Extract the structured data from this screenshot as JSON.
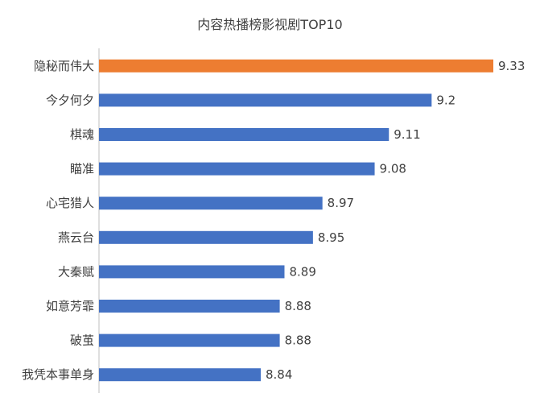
{
  "chart_data": {
    "type": "bar",
    "orientation": "horizontal",
    "title": "内容热播榜影视剧TOP10",
    "xlabel": "",
    "ylabel": "",
    "xlim": [
      0,
      10
    ],
    "grid": false,
    "legend": "none",
    "categories": [
      "隐秘而伟大",
      "今夕何夕",
      "棋魂",
      "瞄准",
      "心宅猎人",
      "燕云台",
      "大秦赋",
      "如意芳霏",
      "破茧",
      "我凭本事单身"
    ],
    "values": [
      9.33,
      9.2,
      9.11,
      9.08,
      8.97,
      8.95,
      8.89,
      8.88,
      8.88,
      8.84
    ],
    "value_labels": [
      "9.33",
      "9.2",
      "9.11",
      "9.08",
      "8.97",
      "8.95",
      "8.89",
      "8.88",
      "8.88",
      "8.84"
    ],
    "colors": {
      "highlight": "#ED7D31",
      "default": "#4472C4",
      "axis": "#BFBFBF"
    },
    "highlight_index": 0
  }
}
